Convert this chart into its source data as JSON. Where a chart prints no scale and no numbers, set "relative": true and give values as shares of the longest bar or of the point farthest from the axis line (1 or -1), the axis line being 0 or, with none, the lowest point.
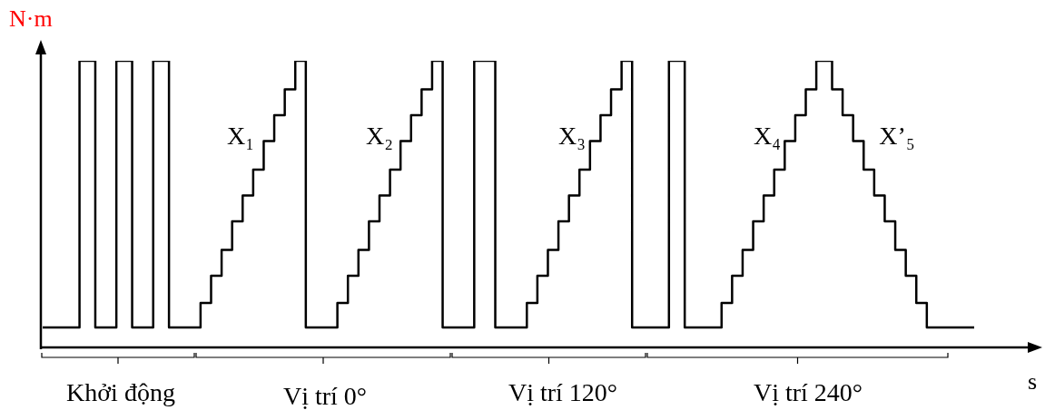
{
  "chart_data": {
    "type": "step",
    "relative": true,
    "xlabel": "s",
    "ylabel": "N·m",
    "legend": false,
    "marker": "none",
    "line_style": "solid",
    "categories": [
      null,
      null,
      null,
      null,
      null,
      null,
      null,
      null,
      null,
      null,
      null,
      null,
      null,
      null,
      null,
      null,
      null,
      null,
      null,
      null,
      null,
      null,
      null,
      null,
      null,
      null,
      null,
      null,
      null,
      null,
      null,
      null,
      null,
      null,
      null,
      null,
      null,
      null,
      null,
      null,
      null,
      null,
      null,
      null,
      null,
      null,
      null,
      null,
      null,
      null,
      null,
      null,
      null,
      null,
      null,
      null,
      null,
      null,
      null,
      null,
      null,
      null,
      null,
      null,
      null,
      null,
      null,
      null,
      null,
      null,
      null,
      null,
      null,
      null,
      null,
      null,
      null,
      null,
      null,
      null,
      null,
      null,
      null,
      null,
      null,
      null,
      null,
      null,
      null,
      null,
      null,
      null,
      null,
      null,
      null,
      null,
      null,
      null,
      null,
      null,
      null,
      null,
      null,
      null,
      null,
      null,
      null,
      null,
      null,
      null,
      null,
      null,
      null,
      null,
      null,
      null,
      null,
      null,
      null,
      null,
      null,
      null,
      null,
      null,
      null,
      null,
      null,
      null,
      null,
      null,
      null,
      null,
      null,
      null,
      null,
      null,
      null,
      null,
      null,
      null,
      null,
      null,
      null,
      null,
      null,
      null,
      null,
      null,
      null,
      null,
      null,
      null,
      null,
      null,
      null,
      null,
      null,
      null,
      null,
      null,
      null,
      null,
      null,
      null,
      null,
      null,
      null,
      null,
      null,
      null,
      null,
      null,
      null,
      null,
      null,
      null,
      null,
      null
    ],
    "series": [
      {
        "color": "#000000",
        "values": [
          0.07,
          0.07,
          0.07,
          0.07,
          0.07,
          0.07,
          0.07,
          0.07,
          1,
          1,
          1,
          0.07,
          0.07,
          0.07,
          0.07,
          1,
          1,
          1,
          0.07,
          0.07,
          0.07,
          0.07,
          1,
          1,
          1,
          0.07,
          0.07,
          0.07,
          0.07,
          0.07,
          0.07,
          0.155,
          0.155,
          0.25,
          0.25,
          0.34,
          0.34,
          0.44,
          0.44,
          0.53,
          0.53,
          0.62,
          0.62,
          0.72,
          0.72,
          0.81,
          0.81,
          0.9,
          0.9,
          1,
          1,
          0.07,
          0.07,
          0.07,
          0.07,
          0.07,
          0.07,
          0.155,
          0.155,
          0.25,
          0.25,
          0.34,
          0.34,
          0.44,
          0.44,
          0.53,
          0.53,
          0.62,
          0.62,
          0.72,
          0.72,
          0.81,
          0.81,
          0.9,
          0.9,
          1,
          1,
          0.07,
          0.07,
          0.07,
          0.07,
          0.07,
          0.07,
          1,
          1,
          1,
          1,
          0.07,
          0.07,
          0.07,
          0.07,
          0.07,
          0.07,
          0.155,
          0.155,
          0.25,
          0.25,
          0.34,
          0.34,
          0.44,
          0.44,
          0.53,
          0.53,
          0.62,
          0.62,
          0.72,
          0.72,
          0.81,
          0.81,
          0.9,
          0.9,
          1,
          1,
          0.07,
          0.07,
          0.07,
          0.07,
          0.07,
          0.07,
          0.07,
          1,
          1,
          1,
          0.07,
          0.07,
          0.07,
          0.07,
          0.07,
          0.07,
          0.07,
          0.155,
          0.155,
          0.25,
          0.25,
          0.34,
          0.34,
          0.44,
          0.44,
          0.53,
          0.53,
          0.62,
          0.62,
          0.72,
          0.72,
          0.81,
          0.81,
          0.9,
          0.9,
          1,
          1,
          1,
          0.9,
          0.9,
          0.81,
          0.81,
          0.72,
          0.72,
          0.62,
          0.62,
          0.53,
          0.53,
          0.44,
          0.44,
          0.34,
          0.34,
          0.25,
          0.25,
          0.155,
          0.155,
          0.07,
          0.07,
          0.07,
          0.07,
          0.07,
          0.07,
          0.07,
          0.07,
          0.07
        ]
      }
    ],
    "annotations": [
      "X₁",
      "X₂",
      "X₃",
      "X₄",
      "X’₅",
      "Khởi động",
      "Vị trí 0°",
      "Vị trí 120°",
      "Vị trí 240°"
    ]
  }
}
